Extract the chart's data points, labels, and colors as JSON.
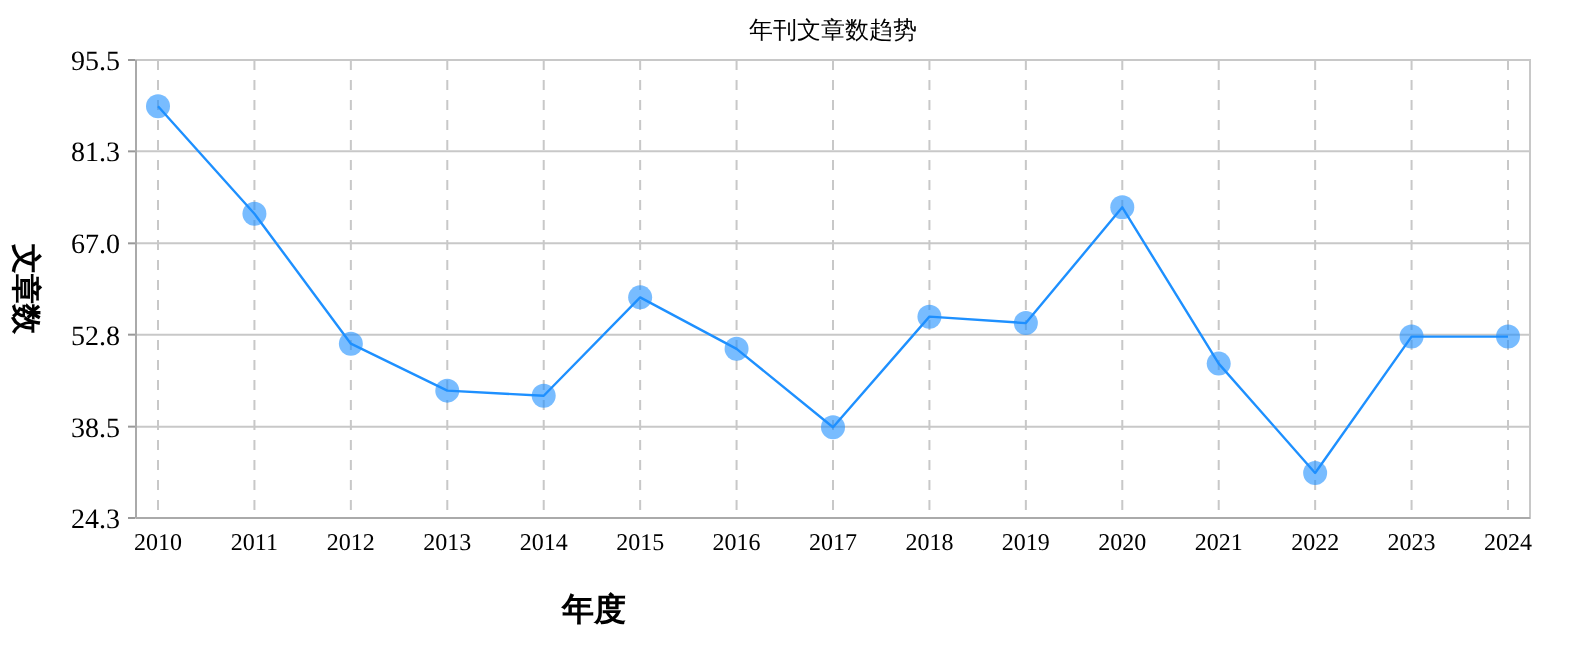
{
  "chart_data": {
    "type": "line",
    "title": "年刊文章数趋势",
    "xlabel": "年度",
    "ylabel": "文章数",
    "categories": [
      "2010",
      "2011",
      "2012",
      "2013",
      "2014",
      "2015",
      "2016",
      "2017",
      "2018",
      "2019",
      "2020",
      "2021",
      "2022",
      "2023",
      "2024"
    ],
    "series": [
      {
        "color": "#1e90ff",
        "values": [
          88.3,
          71.6,
          51.4,
          44.1,
          43.3,
          58.6,
          50.6,
          38.4,
          55.6,
          54.6,
          72.6,
          48.3,
          31.3,
          52.5,
          52.5
        ]
      }
    ],
    "ylim": [
      24.3,
      95.5
    ],
    "yticks": [
      24.3,
      38.5,
      52.8,
      {
        "value": 67.0,
        "label": "67.0"
      },
      81.3,
      95.5
    ],
    "grid": true,
    "marker": "circle",
    "line_style": "solid"
  }
}
